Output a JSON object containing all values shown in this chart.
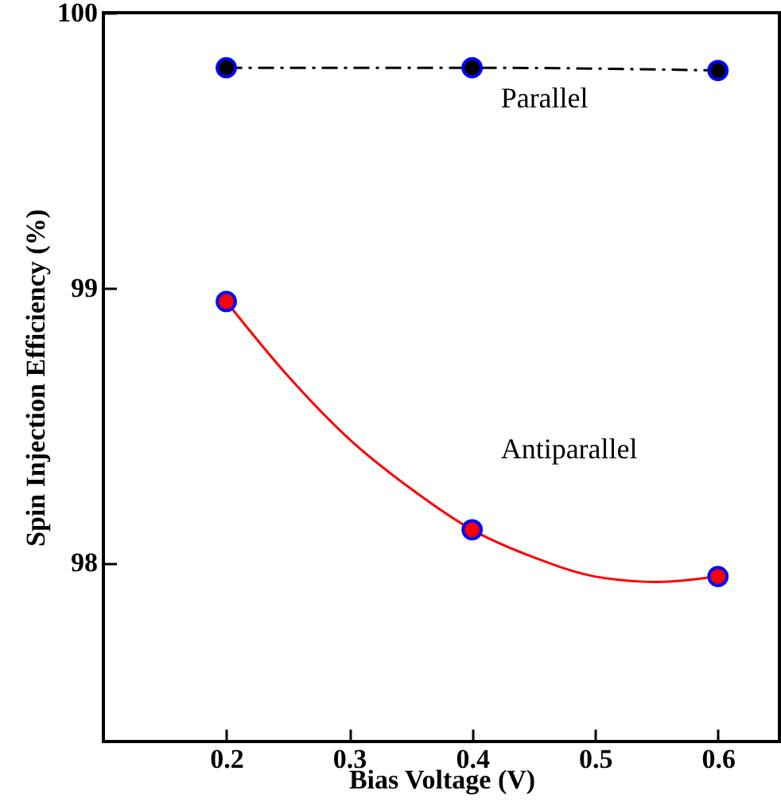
{
  "chart_data": {
    "type": "scatter",
    "xlabel": "Bias Voltage (V)",
    "ylabel": "Spin Injection Efficiency (%)",
    "x": [
      0.2,
      0.4,
      0.6
    ],
    "series": [
      {
        "type": "line",
        "name": "Parallel",
        "color": "#000000",
        "values": [
          99.8,
          99.8,
          99.79
        ],
        "marker": "circle",
        "line_style": "dashed"
      },
      {
        "type": "line",
        "color": "#ff0000",
        "x": [
          0.2,
          0.25,
          0.3,
          0.35,
          0.4,
          0.45,
          0.5,
          0.55,
          0.6
        ],
        "values": [
          98.95,
          98.68,
          98.45,
          98.27,
          98.12,
          98.02,
          97.95,
          97.93,
          97.95
        ],
        "marker": "none",
        "line_style": "solid"
      },
      {
        "name": "Antiparallel",
        "color": "#ff0000",
        "values": [
          98.95,
          98.12,
          97.95
        ],
        "marker": "circle"
      }
    ],
    "xlim": [
      0.1,
      0.65
    ],
    "xticks": [
      0.2,
      0.3,
      0.4,
      0.5,
      0.6
    ],
    "ylim": [
      97.35,
      100
    ],
    "yticks": [
      98,
      99,
      100
    ],
    "grid": false
  }
}
